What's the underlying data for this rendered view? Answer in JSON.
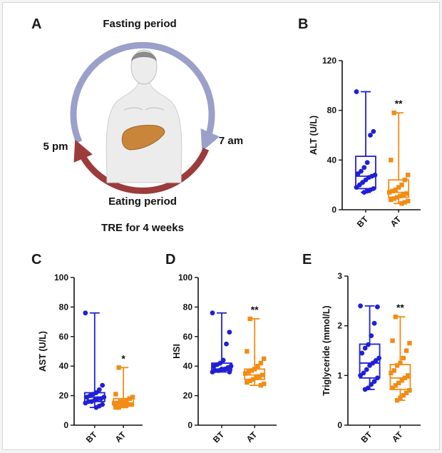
{
  "figure": {
    "panel_a": {
      "letter": "A",
      "fasting_label": "Fasting period",
      "eating_label": "Eating period",
      "time_left": "5 pm",
      "time_right": "7 am",
      "caption": "TRE for 4 weeks"
    },
    "colors": {
      "bt": "#1f1fd6",
      "at": "#f28c14",
      "fasting_arc": "#9aa0c9",
      "eating_arc": "#9c3b3b",
      "skin": "#e9e9e9",
      "liver": "#c9853a"
    }
  },
  "chart_data": [
    {
      "panel": "B",
      "type": "box",
      "ylabel": "ALT (U/L)",
      "ylim": [
        0,
        120
      ],
      "yticks": [
        0,
        40,
        80,
        120
      ],
      "categories": [
        "BT",
        "AT"
      ],
      "significance": "**",
      "series": [
        {
          "name": "BT",
          "min": 14,
          "q1": 17,
          "median": 27,
          "q3": 43,
          "max": 95,
          "points": [
            95,
            63,
            60,
            38,
            34,
            31,
            29,
            28,
            27,
            26,
            24,
            22,
            20,
            18,
            17,
            16,
            15,
            14
          ]
        },
        {
          "name": "AT",
          "min": 5,
          "q1": 10,
          "median": 14,
          "q3": 24,
          "max": 78,
          "points": [
            78,
            40,
            28,
            24,
            20,
            18,
            16,
            15,
            14,
            13,
            12,
            11,
            10,
            9,
            8,
            7,
            6,
            5
          ]
        }
      ]
    },
    {
      "panel": "C",
      "type": "box",
      "ylabel": "AST (U/L)",
      "ylim": [
        0,
        100
      ],
      "yticks": [
        0,
        20,
        40,
        60,
        80,
        100
      ],
      "categories": [
        "BT",
        "AT"
      ],
      "significance": "*",
      "series": [
        {
          "name": "BT",
          "min": 12,
          "q1": 16,
          "median": 19,
          "q3": 22,
          "max": 76,
          "points": [
            76,
            27,
            24,
            22,
            21,
            20,
            19,
            19,
            18,
            18,
            17,
            16,
            16,
            15,
            14,
            13,
            12
          ]
        },
        {
          "name": "AT",
          "min": 12,
          "q1": 13,
          "median": 15,
          "q3": 18,
          "max": 39,
          "points": [
            39,
            21,
            19,
            18,
            17,
            16,
            16,
            15,
            15,
            14,
            14,
            13,
            13,
            12,
            12
          ]
        }
      ]
    },
    {
      "panel": "D",
      "type": "box",
      "ylabel": "HSI",
      "ylim": [
        0,
        100
      ],
      "yticks": [
        0,
        20,
        40,
        60,
        80,
        100
      ],
      "categories": [
        "BT",
        "AT"
      ],
      "significance": "**",
      "series": [
        {
          "name": "BT",
          "min": 36,
          "q1": 37,
          "median": 38,
          "q3": 42,
          "max": 76,
          "points": [
            76,
            63,
            55,
            44,
            42,
            41,
            40,
            40,
            39,
            38,
            38,
            37,
            37,
            36,
            36
          ]
        },
        {
          "name": "AT",
          "min": 27,
          "q1": 31,
          "median": 34,
          "q3": 38,
          "max": 72,
          "points": [
            72,
            50,
            45,
            42,
            40,
            38,
            37,
            36,
            35,
            34,
            33,
            32,
            31,
            30,
            29,
            28,
            27
          ]
        }
      ]
    },
    {
      "panel": "E",
      "type": "box",
      "ylabel": "Triglyceride (mmol/L)",
      "ylim": [
        0,
        3
      ],
      "yticks": [
        0,
        1,
        2,
        3
      ],
      "categories": [
        "BT",
        "AT"
      ],
      "significance": "**",
      "series": [
        {
          "name": "BT",
          "min": 0.72,
          "q1": 0.95,
          "median": 1.25,
          "q3": 1.63,
          "max": 2.4,
          "points": [
            2.4,
            2.38,
            2.05,
            1.8,
            1.62,
            1.55,
            1.45,
            1.35,
            1.3,
            1.25,
            1.2,
            1.12,
            1.05,
            1.0,
            0.95,
            0.88,
            0.82,
            0.75,
            0.72
          ]
        },
        {
          "name": "AT",
          "min": 0.5,
          "q1": 0.72,
          "median": 0.95,
          "q3": 1.22,
          "max": 2.18,
          "points": [
            2.18,
            1.7,
            1.65,
            1.5,
            1.35,
            1.25,
            1.2,
            1.1,
            1.05,
            1.0,
            0.95,
            0.9,
            0.85,
            0.8,
            0.75,
            0.7,
            0.65,
            0.6,
            0.55,
            0.5
          ]
        }
      ]
    }
  ]
}
